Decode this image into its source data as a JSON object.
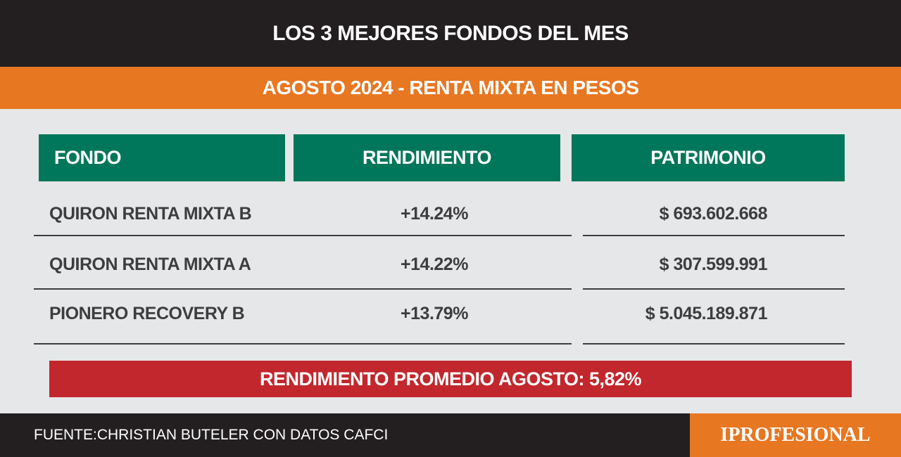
{
  "header": {
    "title": "LOS 3 MEJORES FONDOS DEL MES",
    "subtitle": "AGOSTO 2024 - RENTA MIXTA EN PESOS"
  },
  "table": {
    "columns": [
      "FONDO",
      "RENDIMIENTO",
      "PATRIMONIO"
    ],
    "rows": [
      [
        "QUIRON RENTA MIXTA B",
        "+14.24%",
        "$ 693.602.668"
      ],
      [
        "QUIRON RENTA MIXTA A",
        "+14.22%",
        "$ 307.599.991"
      ],
      [
        "PIONERO RECOVERY B",
        "+13.79%",
        "$ 5.045.189.871"
      ]
    ]
  },
  "summary": "RENDIMIENTO PROMEDIO AGOSTO: 5,82%",
  "footer": {
    "source": "FUENTE:CHRISTIAN BUTELER CON DATOS CAFCI",
    "brand": "IPROFESIONAL"
  }
}
